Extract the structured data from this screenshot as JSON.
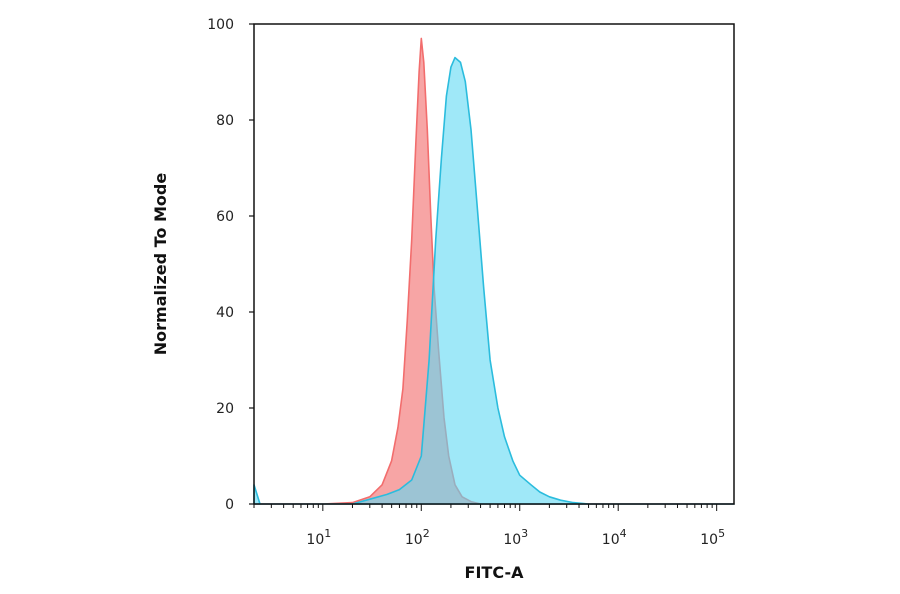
{
  "chart_data": {
    "type": "area",
    "xlabel": "FITC-A",
    "ylabel": "Normalized To Mode",
    "x_scale": "log",
    "xlim": [
      2,
      150000
    ],
    "ylim": [
      0,
      100
    ],
    "x_ticks": [
      {
        "value": 10,
        "base": "10",
        "exp": "1"
      },
      {
        "value": 100,
        "base": "10",
        "exp": "2"
      },
      {
        "value": 1000,
        "base": "10",
        "exp": "3"
      },
      {
        "value": 10000,
        "base": "10",
        "exp": "4"
      },
      {
        "value": 100000,
        "base": "10",
        "exp": "5"
      }
    ],
    "y_ticks": [
      0,
      20,
      40,
      60,
      80,
      100
    ],
    "grid": false,
    "legend": "none",
    "series": [
      {
        "color": "#f26d6d",
        "fill": "#f7a0a0",
        "points": [
          [
            2,
            0
          ],
          [
            10,
            0
          ],
          [
            20,
            0.3
          ],
          [
            30,
            1.5
          ],
          [
            40,
            4
          ],
          [
            50,
            9
          ],
          [
            58,
            16
          ],
          [
            65,
            24
          ],
          [
            72,
            38
          ],
          [
            80,
            55
          ],
          [
            88,
            75
          ],
          [
            95,
            90
          ],
          [
            100,
            97
          ],
          [
            106,
            92
          ],
          [
            115,
            78
          ],
          [
            125,
            60
          ],
          [
            135,
            45
          ],
          [
            150,
            32
          ],
          [
            170,
            18
          ],
          [
            190,
            10
          ],
          [
            220,
            4
          ],
          [
            260,
            1.5
          ],
          [
            320,
            0.5
          ],
          [
            400,
            0
          ],
          [
            150000,
            0
          ]
        ]
      },
      {
        "color": "#2bbcdd",
        "fill": "#5fd8f3",
        "points": [
          [
            2,
            4
          ],
          [
            2.3,
            0
          ],
          [
            20,
            0
          ],
          [
            30,
            1
          ],
          [
            45,
            2
          ],
          [
            60,
            3
          ],
          [
            80,
            5
          ],
          [
            100,
            10
          ],
          [
            120,
            30
          ],
          [
            140,
            55
          ],
          [
            160,
            72
          ],
          [
            180,
            85
          ],
          [
            200,
            91
          ],
          [
            220,
            93
          ],
          [
            250,
            92
          ],
          [
            280,
            88
          ],
          [
            320,
            78
          ],
          [
            370,
            62
          ],
          [
            430,
            45
          ],
          [
            500,
            30
          ],
          [
            600,
            20
          ],
          [
            700,
            14
          ],
          [
            850,
            9
          ],
          [
            1000,
            6
          ],
          [
            1300,
            4
          ],
          [
            1600,
            2.5
          ],
          [
            2000,
            1.5
          ],
          [
            2600,
            0.8
          ],
          [
            3500,
            0.3
          ],
          [
            5000,
            0
          ],
          [
            150000,
            0
          ]
        ]
      }
    ]
  }
}
